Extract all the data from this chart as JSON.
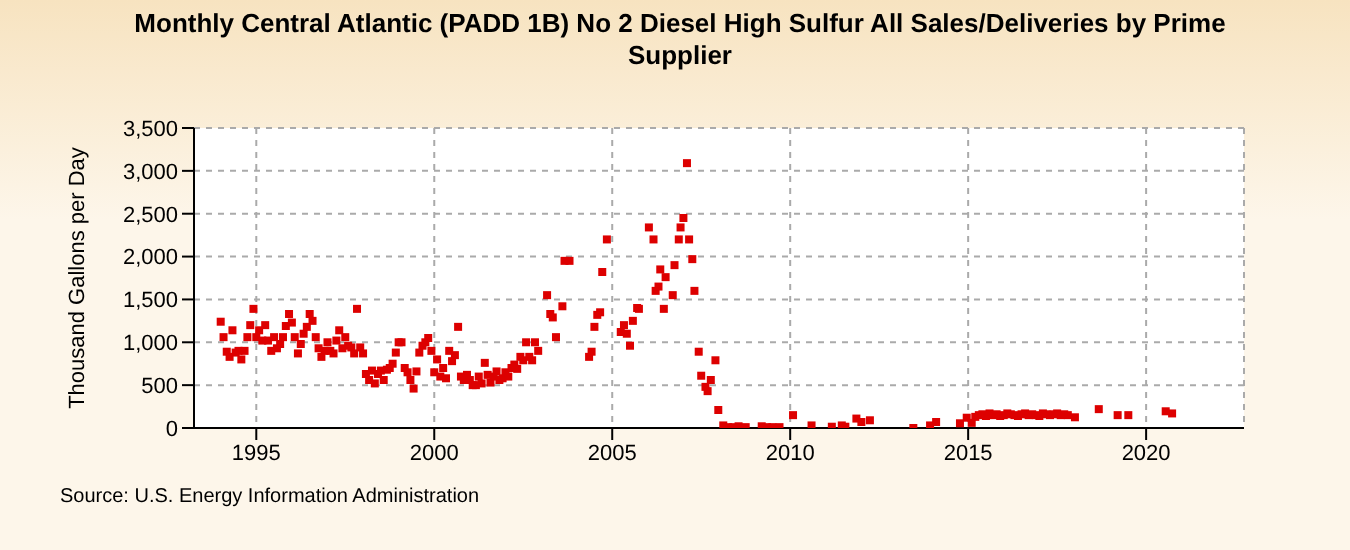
{
  "chart_data": {
    "type": "scatter",
    "title": "Monthly Central Atlantic (PADD 1B) No 2 Diesel High Sulfur All Sales/Deliveries by Prime Supplier",
    "ylabel": "Thousand Gallons per Day",
    "annotations": [
      "Source: U.S. Energy Information Administration"
    ],
    "x": [
      1994.0,
      1994.08,
      1994.17,
      1994.25,
      1994.33,
      1994.42,
      1994.5,
      1994.58,
      1994.67,
      1994.75,
      1994.83,
      1994.92,
      1995.0,
      1995.08,
      1995.17,
      1995.25,
      1995.33,
      1995.42,
      1995.5,
      1995.58,
      1995.67,
      1995.75,
      1995.83,
      1995.92,
      1996.0,
      1996.08,
      1996.17,
      1996.25,
      1996.33,
      1996.42,
      1996.5,
      1996.58,
      1996.67,
      1996.75,
      1996.83,
      1996.92,
      1997.0,
      1997.08,
      1997.17,
      1997.25,
      1997.33,
      1997.42,
      1997.5,
      1997.58,
      1997.67,
      1997.75,
      1997.83,
      1997.92,
      1998.0,
      1998.08,
      1998.17,
      1998.25,
      1998.33,
      1998.42,
      1998.5,
      1998.58,
      1998.67,
      1998.75,
      1998.83,
      1998.92,
      1999.0,
      1999.08,
      1999.17,
      1999.25,
      1999.33,
      1999.42,
      1999.5,
      1999.58,
      1999.67,
      1999.75,
      1999.83,
      1999.92,
      2000.0,
      2000.08,
      2000.17,
      2000.25,
      2000.33,
      2000.42,
      2000.5,
      2000.58,
      2000.67,
      2000.75,
      2000.83,
      2000.92,
      2001.0,
      2001.08,
      2001.17,
      2001.25,
      2001.33,
      2001.42,
      2001.5,
      2001.58,
      2001.67,
      2001.75,
      2001.83,
      2001.92,
      2002.0,
      2002.08,
      2002.17,
      2002.25,
      2002.33,
      2002.42,
      2002.5,
      2002.58,
      2002.67,
      2002.75,
      2002.83,
      2002.92,
      2003.17,
      2003.26,
      2003.33,
      2003.42,
      2003.6,
      2003.66,
      2003.8,
      2004.35,
      2004.42,
      2004.5,
      2004.58,
      2004.66,
      2004.72,
      2004.85,
      2005.24,
      2005.33,
      2005.41,
      2005.5,
      2005.58,
      2005.7,
      2005.75,
      2006.03,
      2006.16,
      2006.22,
      2006.3,
      2006.35,
      2006.45,
      2006.5,
      2006.7,
      2006.75,
      2006.87,
      2006.92,
      2007.0,
      2007.1,
      2007.16,
      2007.25,
      2007.31,
      2007.43,
      2007.5,
      2007.62,
      2007.68,
      2007.77,
      2007.9,
      2007.98,
      2008.12,
      2008.25,
      2008.4,
      2008.55,
      2008.75,
      2009.2,
      2009.35,
      2009.5,
      2009.7,
      2010.08,
      2010.6,
      2011.17,
      2011.45,
      2011.55,
      2011.86,
      2012.0,
      2012.24,
      2013.46,
      2013.93,
      2014.1,
      2014.77,
      2014.96,
      2015.1,
      2015.2,
      2015.3,
      2015.4,
      2015.5,
      2015.6,
      2015.7,
      2015.8,
      2015.9,
      2016.0,
      2016.1,
      2016.2,
      2016.3,
      2016.4,
      2016.5,
      2016.6,
      2016.7,
      2016.8,
      2016.9,
      2017.0,
      2017.1,
      2017.2,
      2017.3,
      2017.4,
      2017.5,
      2017.6,
      2017.7,
      2017.8,
      2018.0,
      2018.67,
      2019.2,
      2019.5,
      2020.55,
      2020.73
    ],
    "values": [
      1240,
      1060,
      890,
      830,
      1140,
      880,
      900,
      800,
      900,
      1060,
      1200,
      1390,
      1060,
      1140,
      1020,
      1200,
      1020,
      900,
      1060,
      930,
      980,
      1060,
      1190,
      1330,
      1230,
      1060,
      870,
      980,
      1100,
      1180,
      1330,
      1250,
      1060,
      930,
      830,
      900,
      1000,
      900,
      870,
      1020,
      1140,
      930,
      1060,
      960,
      940,
      870,
      1390,
      940,
      870,
      630,
      560,
      670,
      520,
      630,
      670,
      560,
      680,
      700,
      750,
      880,
      1000,
      1000,
      700,
      650,
      560,
      460,
      660,
      880,
      960,
      1000,
      1050,
      900,
      650,
      800,
      600,
      700,
      580,
      900,
      780,
      850,
      1180,
      600,
      560,
      620,
      560,
      500,
      500,
      600,
      520,
      760,
      620,
      530,
      600,
      660,
      560,
      580,
      650,
      600,
      700,
      740,
      690,
      830,
      790,
      1000,
      830,
      790,
      1000,
      900,
      1550,
      1330,
      1290,
      1060,
      1420,
      1950,
      1950,
      830,
      890,
      1180,
      1320,
      1350,
      1820,
      2200,
      1120,
      1200,
      1100,
      960,
      1250,
      1400,
      1390,
      2340,
      2200,
      1600,
      1650,
      1850,
      1390,
      1760,
      1550,
      1900,
      2200,
      2340,
      2450,
      3090,
      2200,
      1970,
      1600,
      890,
      610,
      480,
      430,
      560,
      790,
      210,
      30,
      10,
      10,
      20,
      10,
      20,
      10,
      10,
      10,
      150,
      30,
      15,
      30,
      15,
      110,
      70,
      90,
      0,
      30,
      70,
      55,
      120,
      60,
      130,
      150,
      160,
      140,
      170,
      150,
      160,
      140,
      150,
      170,
      160,
      150,
      140,
      160,
      170,
      150,
      160,
      150,
      140,
      170,
      160,
      150,
      160,
      170,
      150,
      160,
      150,
      125,
      220,
      150,
      150,
      195,
      170
    ],
    "color": "#dd0000",
    "marker": "square",
    "xlim": [
      1993.25,
      2022.75
    ],
    "xticks": [
      1995,
      2000,
      2005,
      2010,
      2015,
      2020
    ],
    "ylim": [
      0,
      3500
    ],
    "yticks": [
      {
        "value": 0,
        "label": "0"
      },
      {
        "value": 500,
        "label": "500"
      },
      {
        "value": 1000,
        "label": "1,000"
      },
      {
        "value": 1500,
        "label": "1,500"
      },
      {
        "value": 2000,
        "label": "2,000"
      },
      {
        "value": 2500,
        "label": "2,500"
      },
      {
        "value": 3000,
        "label": "3,000"
      },
      {
        "value": 3500,
        "label": "3,500"
      }
    ],
    "grid": true
  }
}
